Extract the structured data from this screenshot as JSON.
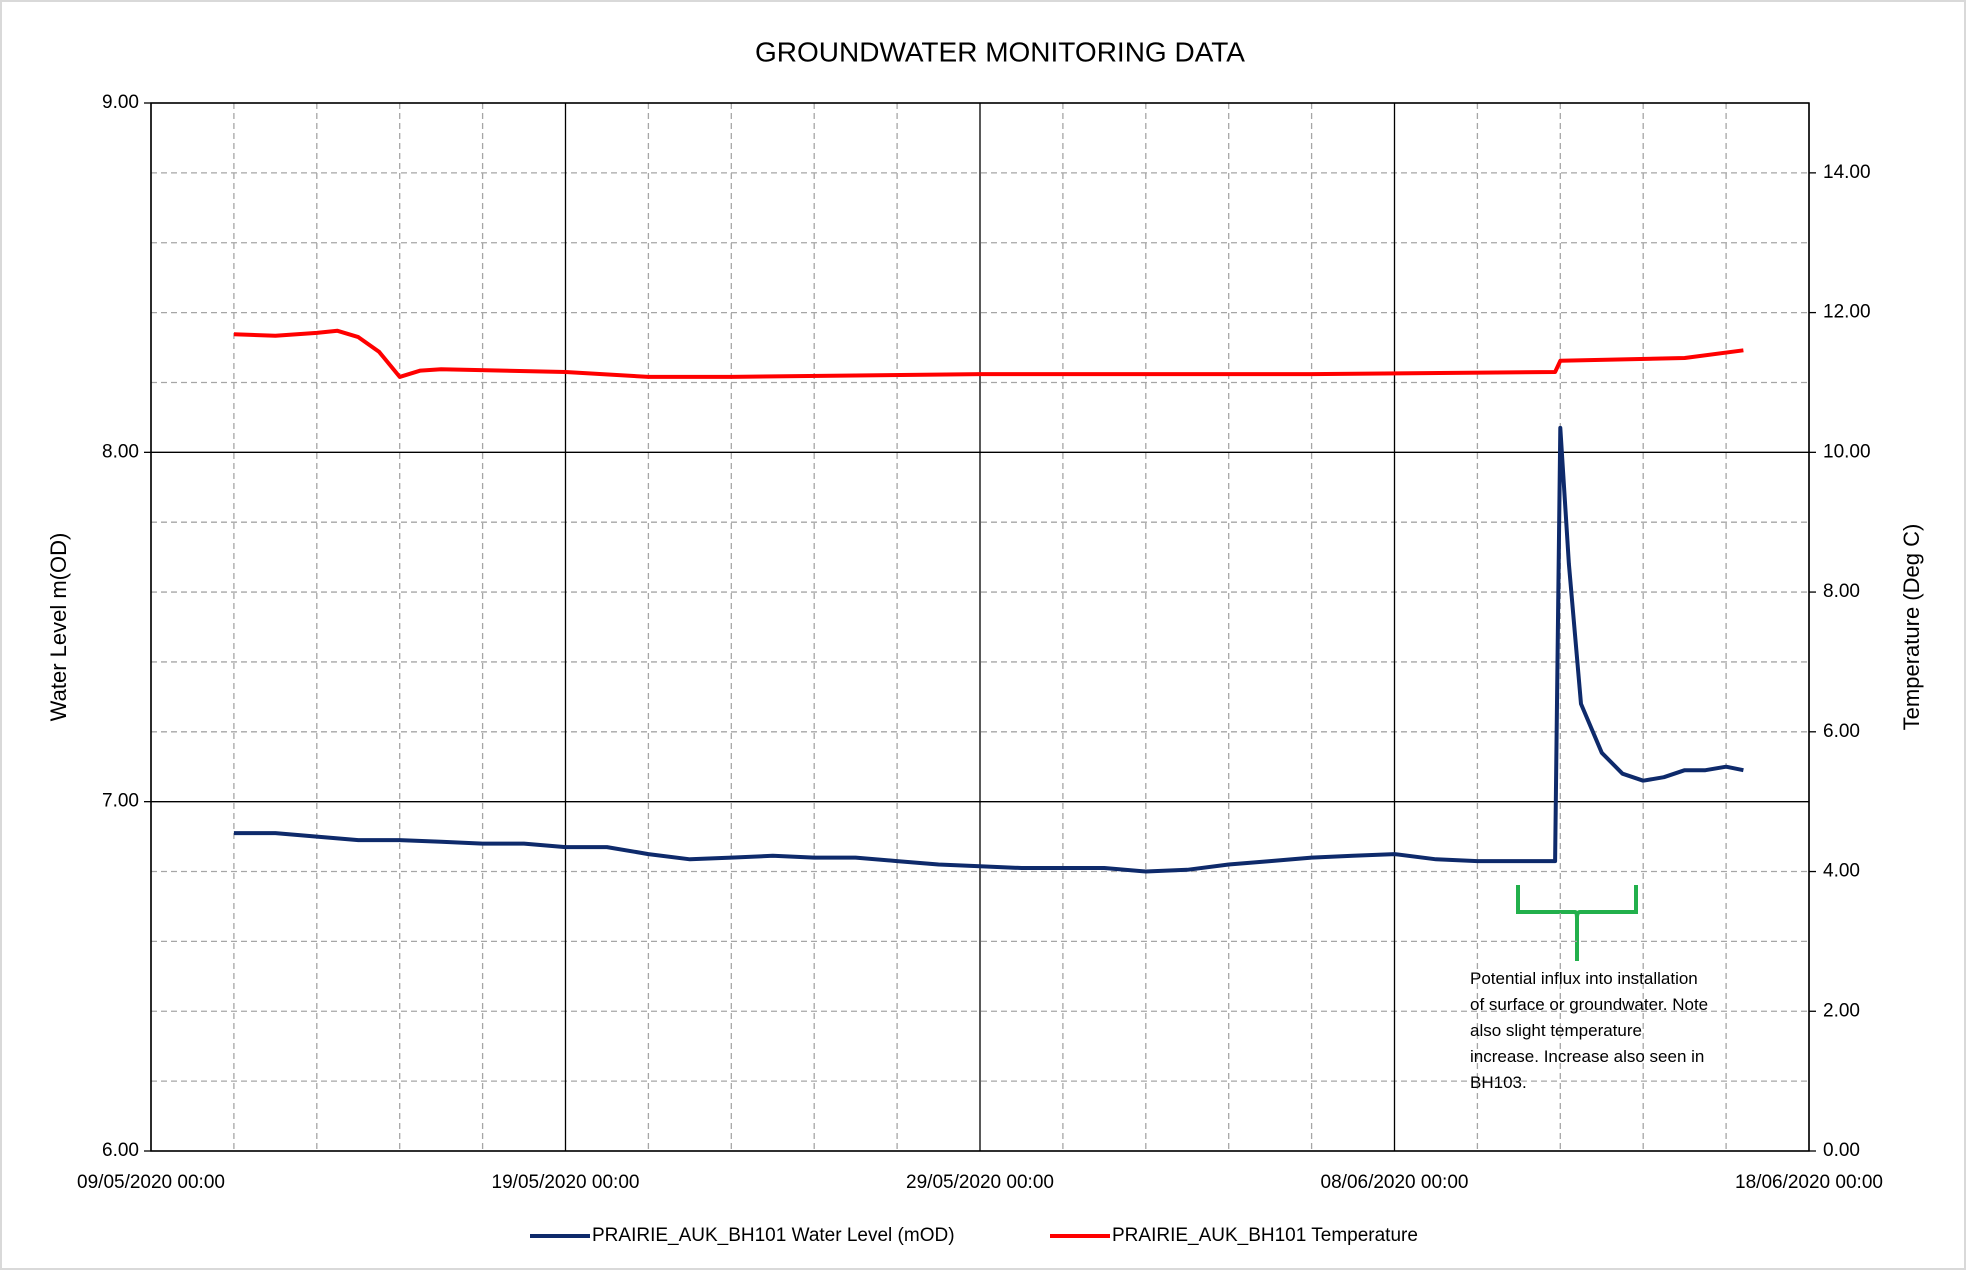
{
  "chart_data": {
    "type": "line",
    "title": "GROUNDWATER MONITORING DATA",
    "ylabel": "Water Level m(OD)",
    "y2label": "Temperature (Deg C)",
    "annotation": "Potential influx into installation of surface or groundwater. Note also slight temperature increase. Increase also seen in BH103.",
    "xlim": [
      "2020-05-09 00:00",
      "2020-06-18 00:00"
    ],
    "xticks": [
      {
        "value": "2020-05-09 00:00",
        "label": "09/05/2020 00:00"
      },
      {
        "value": "2020-05-19 00:00",
        "label": "19/05/2020 00:00"
      },
      {
        "value": "2020-05-29 00:00",
        "label": "29/05/2020 00:00"
      },
      {
        "value": "2020-06-08 00:00",
        "label": "08/06/2020 00:00"
      },
      {
        "value": "2020-06-18 00:00",
        "label": "18/06/2020 00:00"
      }
    ],
    "xminor": [
      "2020-05-11 00:00",
      "2020-05-13 00:00",
      "2020-05-15 00:00",
      "2020-05-17 00:00",
      "2020-05-21 00:00",
      "2020-05-23 00:00",
      "2020-05-25 00:00",
      "2020-05-27 00:00",
      "2020-05-31 00:00",
      "2020-06-02 00:00",
      "2020-06-04 00:00",
      "2020-06-06 00:00",
      "2020-06-10 00:00",
      "2020-06-12 00:00",
      "2020-06-14 00:00",
      "2020-06-16 00:00"
    ],
    "ylim": [
      6,
      9
    ],
    "yticks": [
      {
        "value": 6,
        "label": "6.00"
      },
      {
        "value": 7,
        "label": "7.00"
      },
      {
        "value": 8,
        "label": "8.00"
      },
      {
        "value": 9,
        "label": "9.00"
      }
    ],
    "yminor": [
      6.2,
      6.4,
      6.6,
      6.8,
      7.2,
      7.4,
      7.6,
      7.8,
      8.2,
      8.4,
      8.6,
      8.8
    ],
    "y2lim": [
      0,
      15
    ],
    "y2ticks": [
      {
        "value": 0,
        "label": "0.00"
      },
      {
        "value": 2,
        "label": "2.00"
      },
      {
        "value": 4,
        "label": "4.00"
      },
      {
        "value": 6,
        "label": "6.00"
      },
      {
        "value": 8,
        "label": "8.00"
      },
      {
        "value": 10,
        "label": "10.00"
      },
      {
        "value": 12,
        "label": "12.00"
      },
      {
        "value": 14,
        "label": "14.00"
      }
    ],
    "grid": true,
    "legend": "bottom",
    "series": [
      {
        "name": "PRAIRIE_AUK_BH101 Water Level (mOD)",
        "color": "#0e2a6b",
        "axis": "y",
        "x": [
          "2020-05-11 00:00",
          "2020-05-12 00:00",
          "2020-05-13 00:00",
          "2020-05-14 00:00",
          "2020-05-15 00:00",
          "2020-05-16 00:00",
          "2020-05-17 00:00",
          "2020-05-18 00:00",
          "2020-05-19 00:00",
          "2020-05-20 00:00",
          "2020-05-21 00:00",
          "2020-05-22 00:00",
          "2020-05-23 00:00",
          "2020-05-24 00:00",
          "2020-05-25 00:00",
          "2020-05-26 00:00",
          "2020-05-27 00:00",
          "2020-05-28 00:00",
          "2020-05-29 00:00",
          "2020-05-30 00:00",
          "2020-05-31 00:00",
          "2020-06-01 00:00",
          "2020-06-02 00:00",
          "2020-06-03 00:00",
          "2020-06-04 00:00",
          "2020-06-05 00:00",
          "2020-06-06 00:00",
          "2020-06-07 00:00",
          "2020-06-08 00:00",
          "2020-06-09 00:00",
          "2020-06-10 00:00",
          "2020-06-11 00:00",
          "2020-06-11 21:00",
          "2020-06-12 00:00",
          "2020-06-12 05:00",
          "2020-06-12 12:00",
          "2020-06-13 00:00",
          "2020-06-13 12:00",
          "2020-06-14 00:00",
          "2020-06-14 12:00",
          "2020-06-15 00:00",
          "2020-06-15 12:00",
          "2020-06-16 00:00",
          "2020-06-16 10:00"
        ],
        "values": [
          6.91,
          6.91,
          6.9,
          6.89,
          6.89,
          6.885,
          6.88,
          6.88,
          6.87,
          6.87,
          6.85,
          6.835,
          6.84,
          6.845,
          6.84,
          6.84,
          6.83,
          6.82,
          6.815,
          6.81,
          6.81,
          6.81,
          6.8,
          6.805,
          6.82,
          6.83,
          6.84,
          6.845,
          6.85,
          6.835,
          6.83,
          6.83,
          6.83,
          8.07,
          7.68,
          7.28,
          7.14,
          7.08,
          7.06,
          7.07,
          7.09,
          7.09,
          7.1,
          7.09
        ]
      },
      {
        "name": "PRAIRIE_AUK_BH101 Temperature",
        "color": "#ff0000",
        "axis": "y2",
        "x": [
          "2020-05-11 00:00",
          "2020-05-12 00:00",
          "2020-05-13 00:00",
          "2020-05-13 12:00",
          "2020-05-14 00:00",
          "2020-05-14 12:00",
          "2020-05-15 00:00",
          "2020-05-15 12:00",
          "2020-05-16 00:00",
          "2020-05-19 00:00",
          "2020-05-21 00:00",
          "2020-05-23 00:00",
          "2020-05-29 00:00",
          "2020-06-06 00:00",
          "2020-06-11 21:00",
          "2020-06-12 00:00",
          "2020-06-15 00:00",
          "2020-06-16 10:00"
        ],
        "values": [
          11.69,
          11.67,
          11.71,
          11.74,
          11.65,
          11.44,
          11.08,
          11.17,
          11.19,
          11.15,
          11.08,
          11.08,
          11.12,
          11.12,
          11.15,
          11.31,
          11.35,
          11.46
        ]
      }
    ]
  }
}
